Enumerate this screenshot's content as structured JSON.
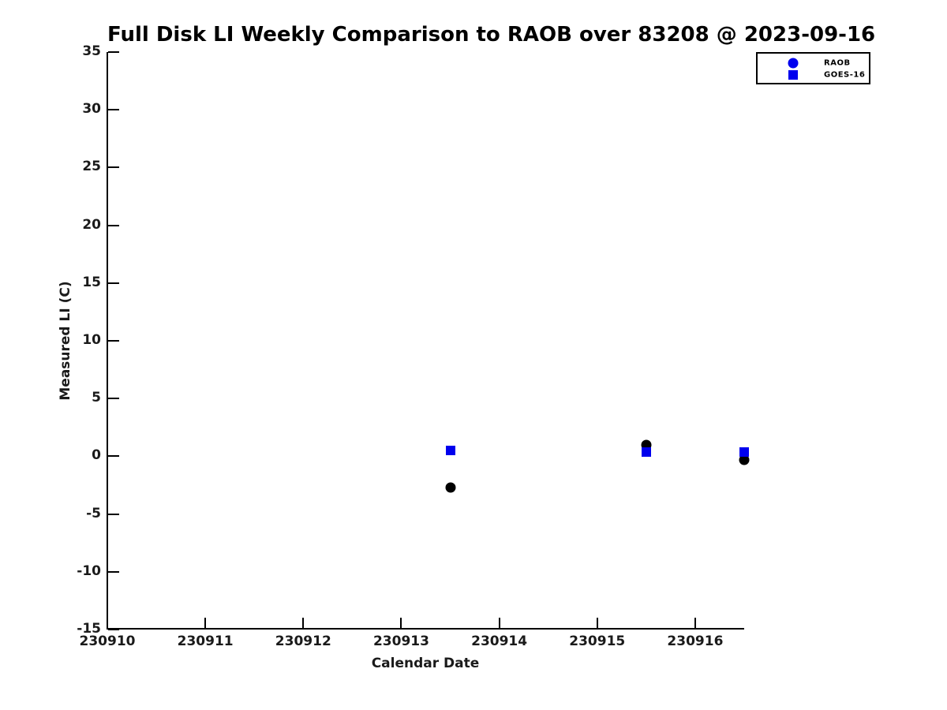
{
  "figure": {
    "background_color": "#ffffff",
    "accent_blue": "#0000ee",
    "marker_black": "#000000"
  },
  "chart_data": {
    "type": "scatter",
    "title": "Full Disk LI Weekly Comparison to RAOB over 83208 @ 2023-09-16",
    "xlabel": "Calendar Date",
    "ylabel": "Measured LI (C)",
    "xlim": [
      230910,
      230916.5
    ],
    "ylim": [
      -15,
      35
    ],
    "xticks": [
      230910,
      230911,
      230912,
      230913,
      230914,
      230915,
      230916
    ],
    "yticks": [
      35,
      30,
      25,
      20,
      15,
      10,
      5,
      0,
      -5,
      -10,
      -15
    ],
    "grid": false,
    "legend_position": "top-right",
    "series": [
      {
        "name": "RAOB",
        "marker": "circle",
        "plot_color": "#000000",
        "legend_color": "#0000ee",
        "points": [
          {
            "x": 230913.5,
            "y": -2.7
          },
          {
            "x": 230915.5,
            "y": 1.0
          },
          {
            "x": 230916.5,
            "y": -0.3
          }
        ]
      },
      {
        "name": "GOES-16",
        "marker": "square",
        "plot_color": "#0000ee",
        "legend_color": "#0000ee",
        "points": [
          {
            "x": 230913.5,
            "y": 0.5
          },
          {
            "x": 230915.5,
            "y": 0.4
          },
          {
            "x": 230916.5,
            "y": 0.35
          }
        ]
      }
    ]
  }
}
